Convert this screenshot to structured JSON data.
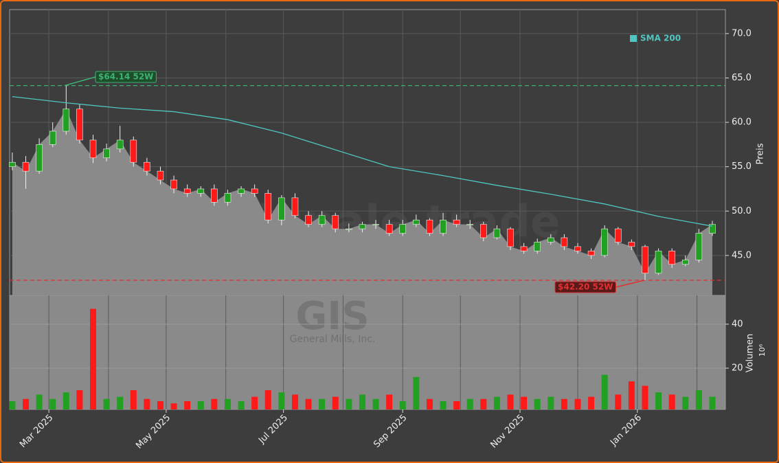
{
  "chart_data": {
    "type": "candlestick",
    "watermark": "forexsignale.trade",
    "symbol": "GIS",
    "company": "General Mills, Inc.",
    "ylabel": "Preis",
    "xlim": [
      -1.4,
      370.8
    ],
    "ylim": [
      40.5,
      72.7
    ],
    "yticks": [
      {
        "value": 45,
        "label": "45.0"
      },
      {
        "value": 50,
        "label": "50.0"
      },
      {
        "value": 55,
        "label": "55.0"
      },
      {
        "value": 60,
        "label": "60.0"
      },
      {
        "value": 65,
        "label": "65.0"
      },
      {
        "value": 70,
        "label": "70.0"
      }
    ],
    "xticks": [
      {
        "value": 19,
        "label": "Mar 2025"
      },
      {
        "value": 80,
        "label": "May 2025"
      },
      {
        "value": 141,
        "label": "Jul 2025"
      },
      {
        "value": 203,
        "label": "Sep 2025"
      },
      {
        "value": 264,
        "label": "Nov 2025"
      },
      {
        "value": 325,
        "label": "Jan 2026"
      }
    ],
    "xgrid": [
      19,
      50,
      80,
      111,
      141,
      172,
      203,
      233,
      264,
      294,
      325,
      356
    ],
    "up_color": "#22a022",
    "down_color": "#ff1a1a",
    "area_color": "#8a8a8a",
    "x": [
      0,
      7,
      14,
      21,
      28,
      35,
      42,
      49,
      56,
      63,
      70,
      77,
      84,
      91,
      98,
      105,
      112,
      119,
      126,
      133,
      140,
      147,
      154,
      161,
      168,
      175,
      182,
      189,
      196,
      203,
      210,
      217,
      224,
      231,
      238,
      245,
      252,
      259,
      266,
      273,
      280,
      287,
      294,
      301,
      308,
      315,
      322,
      329,
      336,
      343,
      350,
      357,
      364
    ],
    "open": [
      55,
      55.5,
      54.5,
      57.5,
      59,
      61.5,
      58,
      56,
      57,
      58,
      55.5,
      54.5,
      53.5,
      52.5,
      52,
      52.5,
      51,
      52,
      52.5,
      52,
      49,
      51.5,
      49.5,
      48.5,
      49.5,
      48,
      48,
      48.5,
      48.5,
      47.5,
      48.5,
      49,
      47.5,
      49,
      48.5,
      48.5,
      47,
      48,
      46,
      45.5,
      46.5,
      47,
      46,
      45.5,
      45,
      48,
      46.5,
      46,
      43,
      45.5,
      44,
      44.5,
      47.5
    ],
    "high": [
      56.6,
      56.2,
      58.2,
      60,
      64.14,
      62,
      58.6,
      57.6,
      59.6,
      58.4,
      56,
      55,
      54,
      53,
      52.8,
      53,
      52.4,
      52.8,
      53,
      52.4,
      51.8,
      52,
      50,
      50,
      49.8,
      48.6,
      48.8,
      49,
      49,
      49,
      49.6,
      49.2,
      49.8,
      49.6,
      49,
      48.8,
      48.4,
      48.2,
      46.4,
      46.9,
      47.4,
      47.4,
      46.4,
      45.8,
      48.4,
      48.2,
      46.8,
      46.2,
      45.8,
      45.8,
      45,
      48,
      48.9
    ],
    "low": [
      54.6,
      52.5,
      54.2,
      57.2,
      58.6,
      57.6,
      55.4,
      55.6,
      56.6,
      55,
      54,
      53,
      52,
      51.6,
      51.6,
      50.6,
      50.6,
      51.6,
      51.6,
      48.6,
      48.4,
      49.2,
      48.2,
      48.2,
      47.6,
      47.6,
      47.6,
      48,
      47.2,
      47.2,
      48.2,
      47.2,
      47.2,
      48.2,
      48,
      46.6,
      46.8,
      45.6,
      45.2,
      45.2,
      46.2,
      45.6,
      45.2,
      44.6,
      44.8,
      46.2,
      45.6,
      42.2,
      42.8,
      43.6,
      43.8,
      44.2,
      47.2
    ],
    "close": [
      55.5,
      54.5,
      57.5,
      59,
      61.5,
      58,
      56,
      57,
      58,
      55.5,
      54.5,
      53.5,
      52.5,
      52,
      52.5,
      51,
      52,
      52.5,
      52,
      49,
      51.5,
      49.5,
      48.5,
      49.5,
      48,
      48,
      48.5,
      48.5,
      47.5,
      48.5,
      49,
      47.5,
      49,
      48.5,
      48.5,
      47,
      48,
      46,
      45.5,
      46.5,
      47,
      46,
      45.5,
      45,
      48,
      46.5,
      46,
      43,
      45.5,
      44,
      44.5,
      47.5,
      48.5
    ],
    "sma": {
      "name": "SMA 200",
      "color": "#4fc7c0",
      "x": [
        0,
        28,
        56,
        84,
        112,
        140,
        168,
        196,
        224,
        252,
        280,
        308,
        336,
        364
      ],
      "values": [
        62.9,
        62.2,
        61.6,
        61.2,
        60.3,
        58.8,
        56.9,
        55,
        54,
        52.9,
        51.9,
        50.8,
        49.4,
        48.3
      ]
    },
    "annotations": [
      {
        "value": 64.14,
        "label": "$64.14 52W",
        "color": "#3cb371"
      },
      {
        "value": 42.2,
        "label": "$42.20 52W",
        "color": "#e03030"
      }
    ],
    "volume": {
      "ylabel": "Volumen",
      "unit": "10⁶",
      "ylim": [
        1.25,
        53.1
      ],
      "yticks": [
        20,
        40
      ],
      "values": [
        5,
        6,
        8,
        6,
        9,
        10,
        47,
        6,
        7,
        10,
        6,
        5,
        4,
        5,
        5,
        6,
        6,
        5,
        7,
        10,
        9,
        8,
        6,
        6,
        7,
        6,
        8,
        6,
        8,
        5,
        16,
        6,
        5,
        5,
        6,
        6,
        7,
        8,
        7,
        6,
        7,
        6,
        6,
        7,
        17,
        8,
        14,
        12,
        9,
        8,
        7,
        10,
        7
      ]
    }
  }
}
